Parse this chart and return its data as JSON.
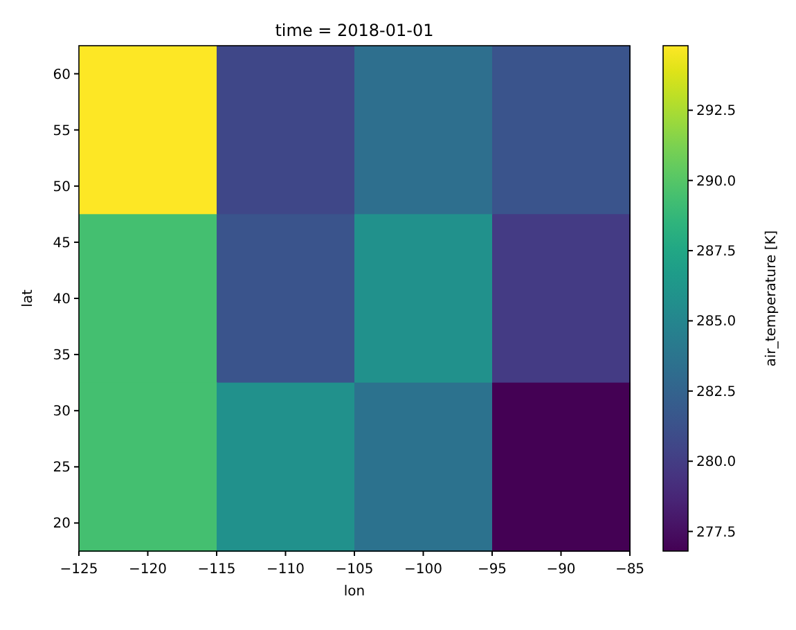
{
  "chart_data": {
    "type": "heatmap",
    "title": "time = 2018-01-01",
    "xlabel": "lon",
    "ylabel": "lat",
    "clabel": "air_temperature [K]",
    "xlim": [
      -125,
      -85
    ],
    "xticks": [
      {
        "value": -125,
        "label": "−125"
      },
      {
        "value": -120,
        "label": "−120"
      },
      {
        "value": -115,
        "label": "−115"
      },
      {
        "value": -110,
        "label": "−110"
      },
      {
        "value": -105,
        "label": "−105"
      },
      {
        "value": -100,
        "label": "−100"
      },
      {
        "value": -95,
        "label": "−95"
      },
      {
        "value": -90,
        "label": "−90"
      },
      {
        "value": -85,
        "label": "−85"
      }
    ],
    "ylim": [
      17.5,
      62.5
    ],
    "yticks": [
      20,
      25,
      30,
      35,
      40,
      45,
      50,
      55,
      60
    ],
    "cells": [
      [
        294.8,
        280.6,
        283.3,
        281.5
      ],
      [
        289.4,
        281.5,
        285.8,
        279.9
      ],
      [
        289.4,
        285.8,
        283.6,
        276.8
      ]
    ],
    "clim": [
      276.8,
      294.8
    ],
    "cticks": [
      {
        "value": 277.5,
        "label": "277.5"
      },
      {
        "value": 280,
        "label": "280.0"
      },
      {
        "value": 282.5,
        "label": "282.5"
      },
      {
        "value": 285,
        "label": "285.0"
      },
      {
        "value": 287.5,
        "label": "287.5"
      },
      {
        "value": 290,
        "label": "290.0"
      },
      {
        "value": 292.5,
        "label": "292.5"
      }
    ]
  }
}
